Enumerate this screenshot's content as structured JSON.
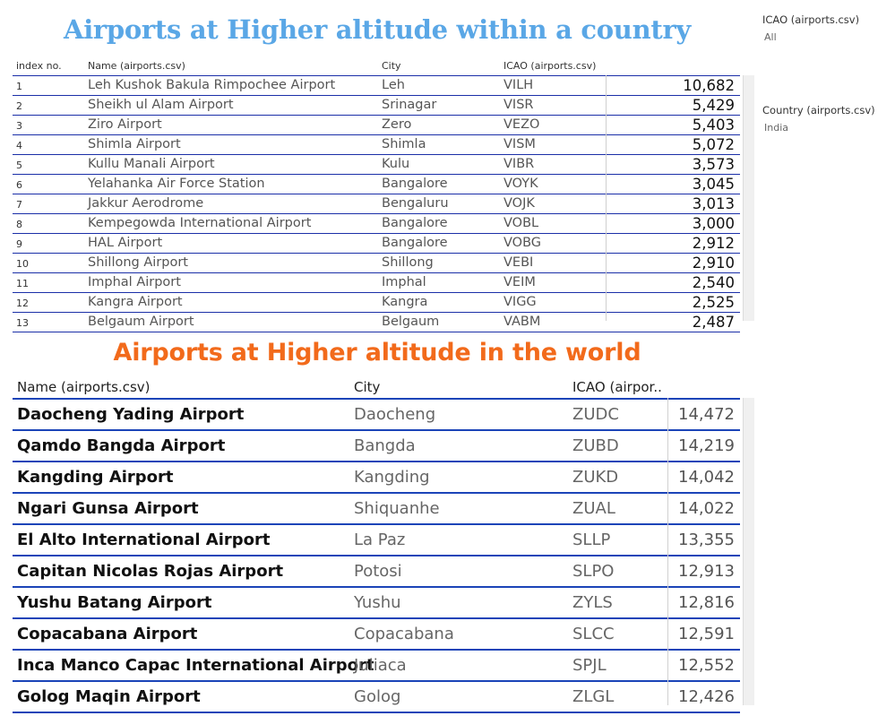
{
  "title_india": "Airports at Higher altitude within a country",
  "title_world": "Airports at Higher altitude in the world",
  "filters": {
    "icao_label": "ICAO (airports.csv)",
    "icao_value": "All",
    "country_label": "Country (airports.csv)",
    "country_value": "India"
  },
  "table_india": {
    "headers": {
      "index": "index no.",
      "name": "Name (airports.csv)",
      "city": "City",
      "icao": "ICAO (airports.csv)"
    },
    "rows": [
      {
        "index": "1",
        "name": "Leh Kushok Bakula Rimpochee Airport",
        "city": "Leh",
        "icao": "VILH",
        "altitude": "10,682"
      },
      {
        "index": "2",
        "name": "Sheikh ul Alam Airport",
        "city": "Srinagar",
        "icao": "VISR",
        "altitude": "5,429"
      },
      {
        "index": "3",
        "name": "Ziro Airport",
        "city": "Zero",
        "icao": "VEZO",
        "altitude": "5,403"
      },
      {
        "index": "4",
        "name": "Shimla Airport",
        "city": "Shimla",
        "icao": "VISM",
        "altitude": "5,072"
      },
      {
        "index": "5",
        "name": "Kullu Manali Airport",
        "city": "Kulu",
        "icao": "VIBR",
        "altitude": "3,573"
      },
      {
        "index": "6",
        "name": "Yelahanka Air Force Station",
        "city": "Bangalore",
        "icao": "VOYK",
        "altitude": "3,045"
      },
      {
        "index": "7",
        "name": "Jakkur Aerodrome",
        "city": "Bengaluru",
        "icao": "VOJK",
        "altitude": "3,013"
      },
      {
        "index": "8",
        "name": "Kempegowda International Airport",
        "city": "Bangalore",
        "icao": "VOBL",
        "altitude": "3,000"
      },
      {
        "index": "9",
        "name": "HAL Airport",
        "city": "Bangalore",
        "icao": "VOBG",
        "altitude": "2,912"
      },
      {
        "index": "10",
        "name": "Shillong Airport",
        "city": "Shillong",
        "icao": "VEBI",
        "altitude": "2,910"
      },
      {
        "index": "11",
        "name": "Imphal Airport",
        "city": "Imphal",
        "icao": "VEIM",
        "altitude": "2,540"
      },
      {
        "index": "12",
        "name": "Kangra Airport",
        "city": "Kangra",
        "icao": "VIGG",
        "altitude": "2,525"
      },
      {
        "index": "13",
        "name": "Belgaum Airport",
        "city": "Belgaum",
        "icao": "VABM",
        "altitude": "2,487"
      }
    ]
  },
  "table_world": {
    "headers": {
      "name": "Name (airports.csv)",
      "city": "City",
      "icao": "ICAO (airpor.."
    },
    "rows": [
      {
        "name": "Daocheng Yading Airport",
        "city": "Daocheng",
        "icao": "ZUDC",
        "altitude": "14,472"
      },
      {
        "name": "Qamdo Bangda Airport",
        "city": "Bangda",
        "icao": "ZUBD",
        "altitude": "14,219"
      },
      {
        "name": "Kangding Airport",
        "city": "Kangding",
        "icao": "ZUKD",
        "altitude": "14,042"
      },
      {
        "name": "Ngari Gunsa Airport",
        "city": "Shiquanhe",
        "icao": "ZUAL",
        "altitude": "14,022"
      },
      {
        "name": "El Alto International Airport",
        "city": "La Paz",
        "icao": "SLLP",
        "altitude": "13,355"
      },
      {
        "name": "Capitan Nicolas Rojas Airport",
        "city": "Potosi",
        "icao": "SLPO",
        "altitude": "12,913"
      },
      {
        "name": "Yushu Batang Airport",
        "city": "Yushu",
        "icao": "ZYLS",
        "altitude": "12,816"
      },
      {
        "name": "Copacabana Airport",
        "city": "Copacabana",
        "icao": "SLCC",
        "altitude": "12,591"
      },
      {
        "name": "Inca Manco Capac International Airport",
        "city": "Juliaca",
        "icao": "SPJL",
        "altitude": "12,552"
      },
      {
        "name": "Golog Maqin Airport",
        "city": "Golog",
        "icao": "ZLGL",
        "altitude": "12,426"
      }
    ]
  }
}
